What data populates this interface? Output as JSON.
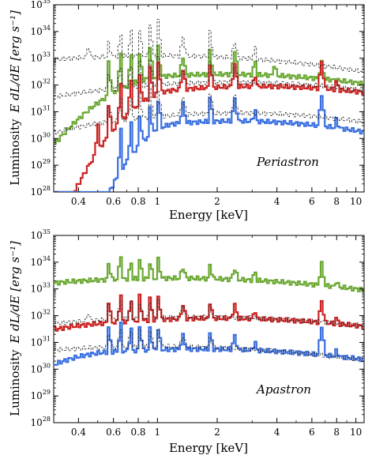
{
  "chart_data": [
    {
      "type": "line",
      "annotation": "Periastron",
      "xlabel": "Energy [keV]",
      "ylabel_left": "Luminosity",
      "ylabel_math": "E dL/dE [erg s⁻¹]",
      "xscale": "log",
      "yscale": "log",
      "xlim": [
        0.3,
        11
      ],
      "ylim": [
        1e+28,
        1e+35
      ],
      "x_ticks": [
        0.4,
        0.6,
        0.8,
        1,
        2,
        4,
        6,
        8,
        10
      ],
      "x_tick_labels": [
        "0.4",
        "0.6",
        "0.8",
        "1",
        "2",
        "4",
        "6",
        "8",
        "10"
      ],
      "y_ticks": [
        28,
        29,
        30,
        31,
        32,
        33,
        34,
        35
      ],
      "y_tick_labels": [
        "10",
        "10",
        "10",
        "10",
        "10",
        "10",
        "10",
        "10"
      ],
      "y_tick_exponents": [
        "28",
        "29",
        "30",
        "31",
        "32",
        "33",
        "34",
        "35"
      ],
      "series": [
        {
          "color": "#6aa832",
          "style": "solid",
          "peak_logL": 32.4,
          "peak_E": 2.2,
          "width": 1.05,
          "low_cut": 0.55,
          "low_slope": 3.0,
          "lines": [
            [
              0.57,
              1.3
            ],
            [
              0.65,
              1.4
            ],
            [
              0.73,
              1.1
            ],
            [
              0.82,
              1.0
            ],
            [
              0.92,
              1.2
            ],
            [
              1.02,
              1.1
            ],
            [
              1.35,
              0.7
            ],
            [
              1.86,
              0.9
            ],
            [
              2.45,
              0.9
            ],
            [
              3.1,
              0.5
            ],
            [
              3.9,
              0.4
            ],
            [
              6.7,
              0.6
            ]
          ]
        },
        {
          "color": "#cc2222",
          "style": "solid",
          "peak_logL": 31.95,
          "peak_E": 3.2,
          "width": 1.0,
          "low_cut": 0.6,
          "low_slope": 6.0,
          "lines": [
            [
              0.5,
              1.0
            ],
            [
              0.57,
              1.2
            ],
            [
              0.65,
              1.4
            ],
            [
              0.73,
              1.2
            ],
            [
              0.82,
              1.0
            ],
            [
              0.92,
              1.1
            ],
            [
              1.02,
              1.2
            ],
            [
              1.35,
              0.7
            ],
            [
              1.86,
              0.9
            ],
            [
              2.45,
              0.8
            ],
            [
              3.1,
              0.4
            ],
            [
              6.7,
              1.0
            ],
            [
              8.0,
              0.3
            ]
          ]
        },
        {
          "color": "#3a6fe0",
          "style": "solid",
          "peak_logL": 30.65,
          "peak_E": 2.5,
          "width": 0.9,
          "low_cut": 0.62,
          "low_slope": 9.0,
          "lines": [
            [
              0.65,
              1.5
            ],
            [
              0.73,
              1.2
            ],
            [
              0.82,
              1.1
            ],
            [
              0.92,
              1.0
            ],
            [
              1.02,
              1.1
            ],
            [
              1.35,
              0.7
            ],
            [
              1.86,
              0.9
            ],
            [
              2.45,
              0.8
            ],
            [
              3.1,
              0.4
            ],
            [
              6.7,
              1.2
            ],
            [
              8.0,
              0.3
            ]
          ]
        },
        {
          "color": "#222222",
          "style": "dashed",
          "peak_logL": 33.1,
          "peak_E": 1.0,
          "width": 1.2,
          "low_cut": 0.2,
          "low_slope": 0.3,
          "lines": [
            [
              0.45,
              0.4
            ],
            [
              0.57,
              0.5
            ],
            [
              0.65,
              0.8
            ],
            [
              0.73,
              0.9
            ],
            [
              0.82,
              1.0
            ],
            [
              0.92,
              1.2
            ],
            [
              1.02,
              1.3
            ],
            [
              1.35,
              0.7
            ],
            [
              1.86,
              0.9
            ],
            [
              2.45,
              0.6
            ],
            [
              3.1,
              0.4
            ]
          ]
        },
        {
          "color": "#222222",
          "style": "dashed",
          "peak_logL": 32.1,
          "peak_E": 2.4,
          "width": 1.1,
          "low_cut": 0.2,
          "low_slope": 0.4,
          "lines": [
            [
              0.57,
              0.6
            ],
            [
              0.65,
              0.8
            ],
            [
              0.73,
              0.8
            ],
            [
              0.82,
              0.9
            ],
            [
              0.92,
              1.0
            ],
            [
              1.02,
              1.0
            ],
            [
              1.35,
              0.6
            ],
            [
              1.86,
              0.8
            ],
            [
              2.45,
              0.6
            ]
          ]
        },
        {
          "color": "#222222",
          "style": "dashed",
          "peak_logL": 30.95,
          "peak_E": 2.5,
          "width": 1.0,
          "low_cut": 0.25,
          "low_slope": 0.6,
          "lines": [
            [
              0.57,
              0.6
            ],
            [
              0.65,
              0.8
            ],
            [
              0.73,
              0.8
            ],
            [
              0.82,
              0.9
            ],
            [
              0.92,
              1.0
            ],
            [
              1.02,
              1.0
            ],
            [
              1.35,
              0.6
            ],
            [
              1.86,
              0.8
            ],
            [
              2.45,
              0.6
            ]
          ]
        }
      ]
    },
    {
      "type": "line",
      "annotation": "Apastron",
      "xlabel": "Energy [keV]",
      "ylabel_left": "Luminosity",
      "ylabel_math": "E dL/dE [erg s⁻¹]",
      "xscale": "log",
      "yscale": "log",
      "xlim": [
        0.3,
        11
      ],
      "ylim": [
        1e+28,
        1e+35
      ],
      "x_ticks": [
        0.4,
        0.6,
        0.8,
        1,
        2,
        4,
        6,
        8,
        10
      ],
      "x_tick_labels": [
        "0.4",
        "0.6",
        "0.8",
        "1",
        "2",
        "4",
        "6",
        "8",
        "10"
      ],
      "y_ticks": [
        28,
        29,
        30,
        31,
        32,
        33,
        34,
        35
      ],
      "y_tick_labels": [
        "10",
        "10",
        "10",
        "10",
        "10",
        "10",
        "10",
        "10"
      ],
      "y_tick_exponents": [
        "28",
        "29",
        "30",
        "31",
        "32",
        "33",
        "34",
        "35"
      ],
      "series": [
        {
          "color": "#6aa832",
          "style": "solid",
          "peak_logL": 33.4,
          "peak_E": 1.2,
          "width": 1.3,
          "low_cut": 0.2,
          "low_slope": 0.3,
          "lines": [
            [
              0.57,
              0.6
            ],
            [
              0.65,
              0.9
            ],
            [
              0.73,
              0.6
            ],
            [
              0.82,
              0.7
            ],
            [
              0.92,
              0.6
            ],
            [
              1.02,
              0.7
            ],
            [
              1.35,
              0.4
            ],
            [
              1.86,
              0.5
            ],
            [
              2.45,
              0.4
            ],
            [
              3.1,
              0.3
            ],
            [
              6.7,
              0.8
            ],
            [
              8.0,
              0.2
            ]
          ]
        },
        {
          "color": "#cc2222",
          "style": "solid",
          "peak_logL": 31.9,
          "peak_E": 2.0,
          "width": 1.2,
          "low_cut": 0.22,
          "low_slope": 0.8,
          "lines": [
            [
              0.57,
              0.8
            ],
            [
              0.65,
              1.0
            ],
            [
              0.73,
              0.8
            ],
            [
              0.82,
              0.9
            ],
            [
              0.92,
              0.8
            ],
            [
              1.02,
              0.9
            ],
            [
              1.35,
              0.5
            ],
            [
              1.86,
              0.6
            ],
            [
              2.45,
              0.5
            ],
            [
              3.1,
              0.3
            ],
            [
              6.7,
              0.8
            ],
            [
              8.0,
              0.2
            ]
          ]
        },
        {
          "color": "#3a6fe0",
          "style": "solid",
          "peak_logL": 30.75,
          "peak_E": 1.6,
          "width": 1.2,
          "low_cut": 0.28,
          "low_slope": 1.8,
          "lines": [
            [
              0.57,
              0.9
            ],
            [
              0.65,
              1.0
            ],
            [
              0.73,
              0.8
            ],
            [
              0.82,
              0.9
            ],
            [
              0.92,
              0.8
            ],
            [
              1.02,
              0.8
            ],
            [
              1.35,
              0.5
            ],
            [
              1.86,
              0.6
            ],
            [
              2.45,
              0.5
            ],
            [
              3.1,
              0.3
            ],
            [
              6.7,
              1.1
            ],
            [
              8.0,
              0.2
            ]
          ]
        },
        {
          "color": "#222222",
          "style": "dashed",
          "peak_logL": 31.95,
          "peak_E": 1.6,
          "width": 1.3,
          "low_cut": 0.2,
          "low_slope": 0.3,
          "lines": [
            [
              0.45,
              0.3
            ],
            [
              0.57,
              0.5
            ],
            [
              0.65,
              0.7
            ],
            [
              0.73,
              0.6
            ],
            [
              0.82,
              0.6
            ],
            [
              0.92,
              0.6
            ],
            [
              1.02,
              0.6
            ],
            [
              1.35,
              0.4
            ],
            [
              1.86,
              0.4
            ]
          ]
        },
        {
          "color": "#222222",
          "style": "dashed",
          "peak_logL": 30.85,
          "peak_E": 1.0,
          "width": 1.3,
          "low_cut": 0.2,
          "low_slope": 0.4,
          "lines": [
            [
              0.57,
              0.5
            ],
            [
              0.65,
              0.7
            ],
            [
              0.73,
              0.6
            ],
            [
              0.82,
              0.6
            ],
            [
              0.92,
              0.6
            ],
            [
              1.02,
              0.6
            ],
            [
              1.35,
              0.4
            ],
            [
              1.86,
              0.4
            ]
          ]
        }
      ]
    }
  ]
}
